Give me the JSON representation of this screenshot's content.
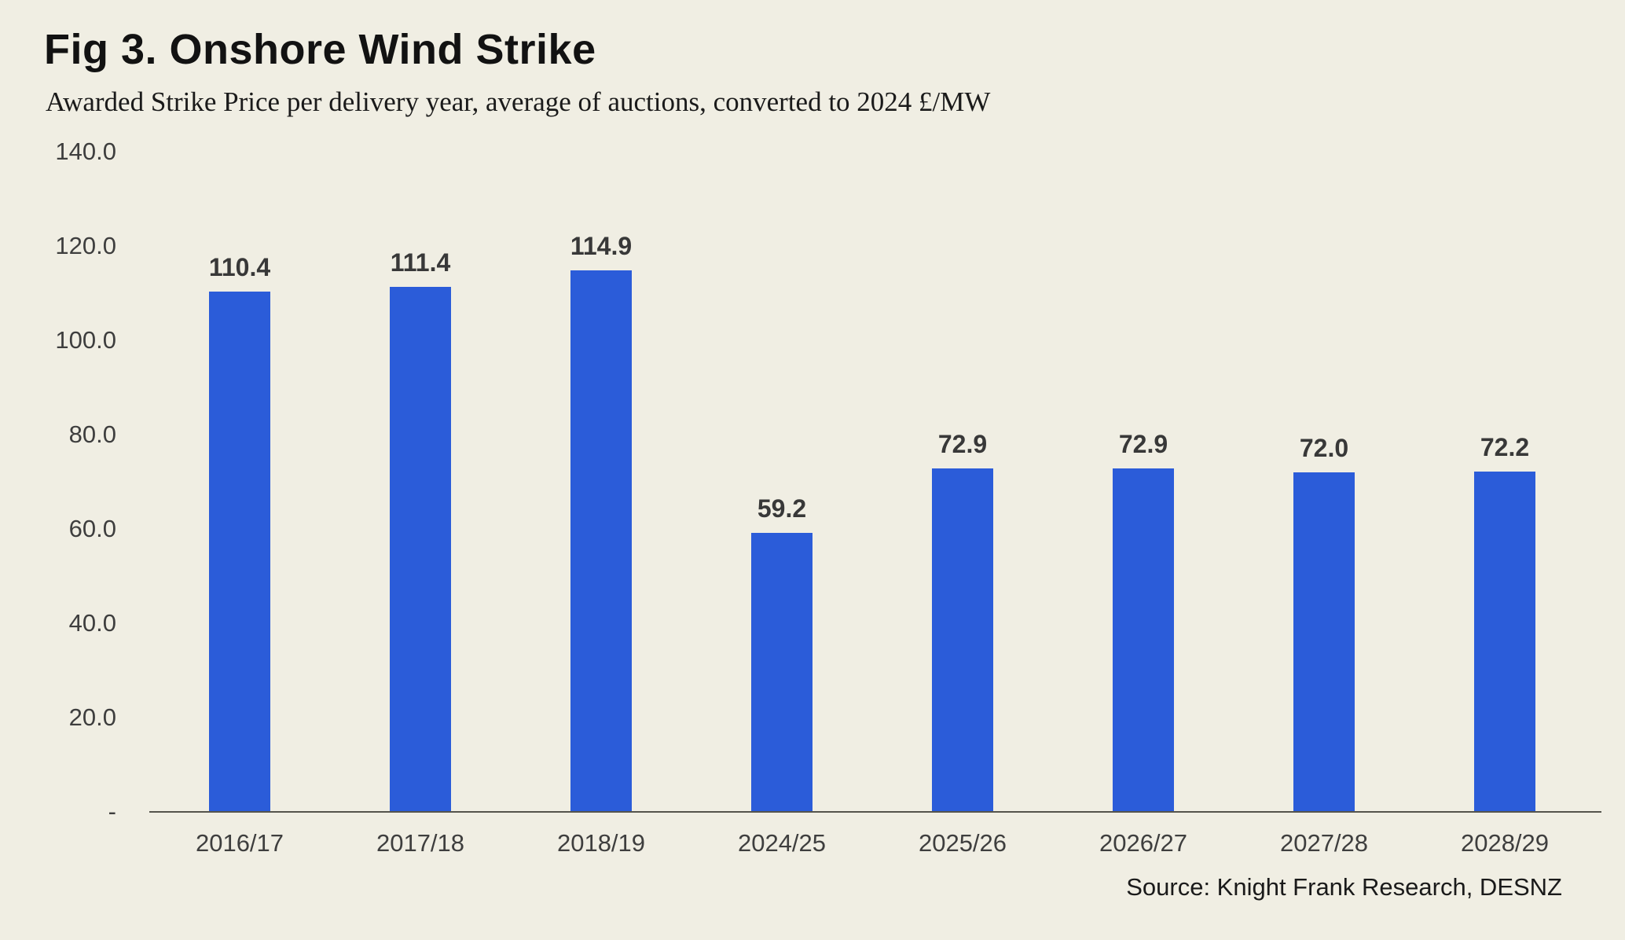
{
  "figure": {
    "title": "Fig 3. Onshore Wind Strike",
    "subtitle": "Awarded Strike Price per delivery year, average of auctions, converted to 2024 £/MW",
    "source": "Source: Knight Frank Research, DESNZ"
  },
  "chart_data": {
    "type": "bar",
    "title": "Fig 3. Onshore Wind Strike",
    "subtitle": "Awarded Strike Price per delivery year, average of auctions, converted to 2024 £/MW",
    "categories": [
      "2016/17",
      "2017/18",
      "2018/19",
      "2024/25",
      "2025/26",
      "2026/27",
      "2027/28",
      "2028/29"
    ],
    "values": [
      110.4,
      111.4,
      114.9,
      59.2,
      72.9,
      72.9,
      72.0,
      72.2
    ],
    "value_labels": [
      "110.4",
      "111.4",
      "114.9",
      "59.2",
      "72.9",
      "72.9",
      "72.0",
      "72.2"
    ],
    "xlabel": "",
    "ylabel": "",
    "ylim": [
      0,
      140
    ],
    "y_ticks": [
      {
        "value": 140,
        "label": "140.0"
      },
      {
        "value": 120,
        "label": "120.0"
      },
      {
        "value": 100,
        "label": "100.0"
      },
      {
        "value": 80,
        "label": "80.0"
      },
      {
        "value": 60,
        "label": "60.0"
      },
      {
        "value": 40,
        "label": "40.0"
      },
      {
        "value": 20,
        "label": "20.0"
      },
      {
        "value": 0,
        "label": "-"
      }
    ],
    "grid": false,
    "legend": false,
    "bar_color": "#2b5cd9",
    "source": "Source: Knight Frank Research, DESNZ"
  },
  "colors": {
    "background": "#f0eee3",
    "bar": "#2b5cd9",
    "axis_line": "#55544c",
    "tick_text": "#3e3e3e",
    "value_text": "#383838",
    "title_text": "#121212",
    "subtitle_text": "#1a1a1a",
    "source_text": "#1a1a1a"
  }
}
